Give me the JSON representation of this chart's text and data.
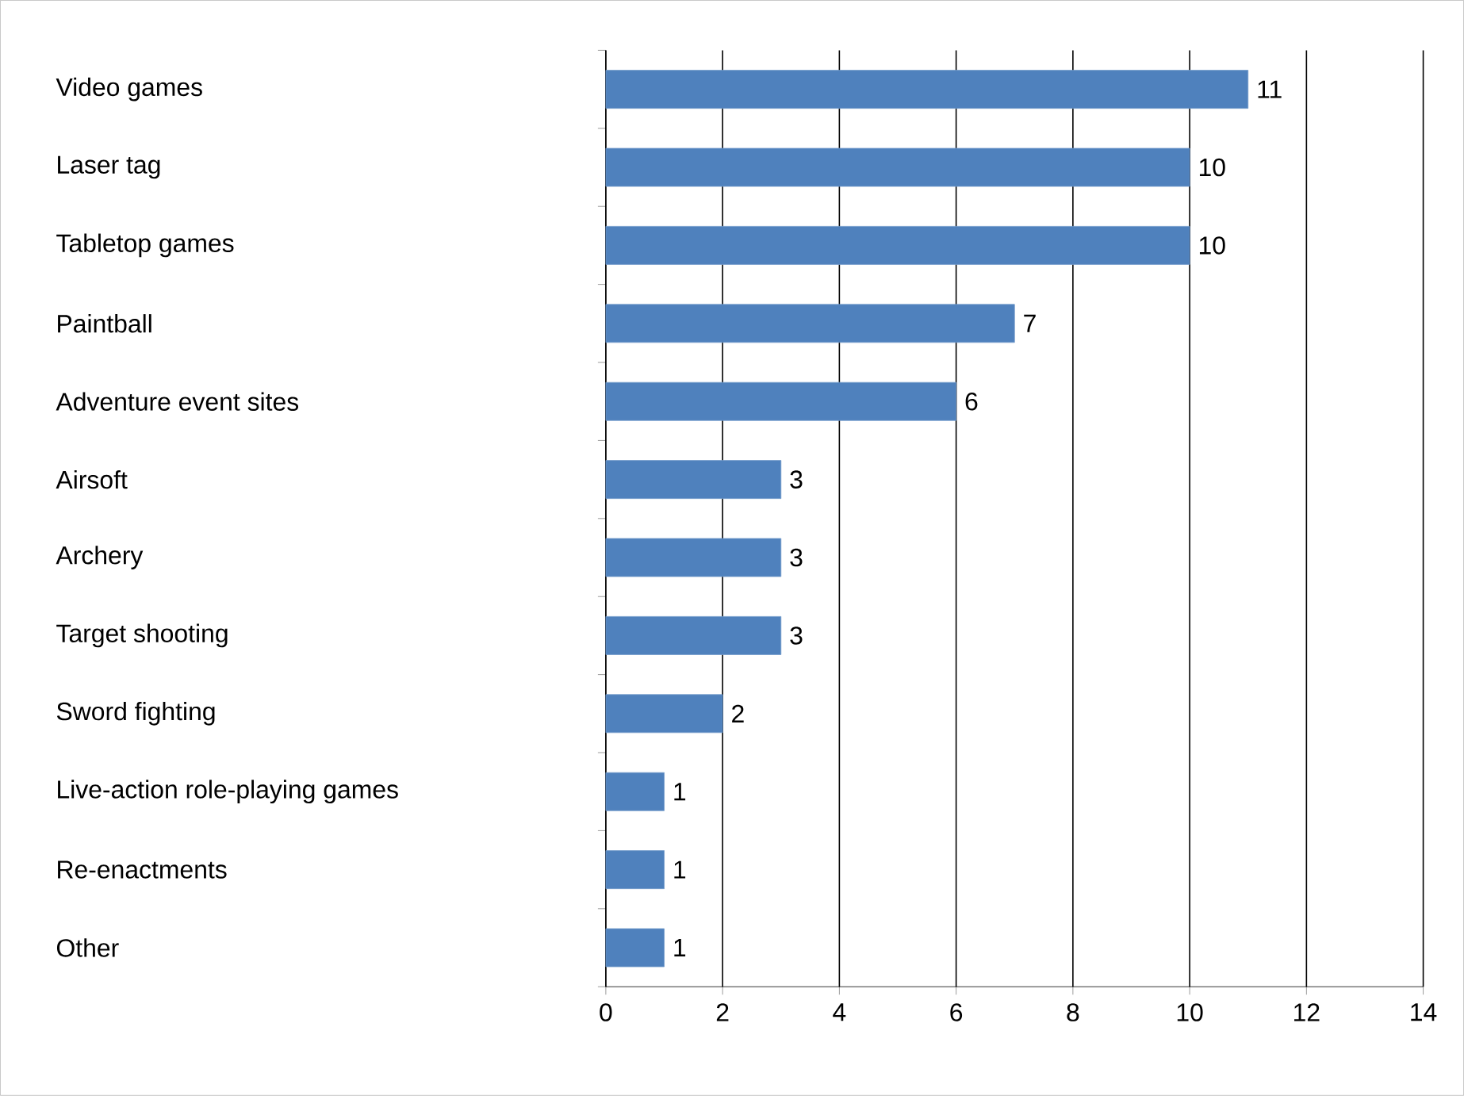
{
  "chart_data": {
    "type": "bar",
    "orientation": "horizontal",
    "categories": [
      "Video games",
      "Laser tag",
      "Tabletop games",
      "Paintball",
      "Adventure event sites",
      "Airsoft",
      "Archery",
      "Target shooting",
      "Sword fighting",
      "Live-action role-playing games",
      "Re-enactments",
      "Other"
    ],
    "values": [
      11,
      10,
      10,
      7,
      6,
      3,
      3,
      3,
      2,
      1,
      1,
      1
    ],
    "color": "#4f81bd",
    "xlim": [
      0,
      14
    ],
    "xticks": [
      0,
      2,
      4,
      6,
      8,
      10,
      12,
      14
    ],
    "grid": "x",
    "data_labels": true
  }
}
